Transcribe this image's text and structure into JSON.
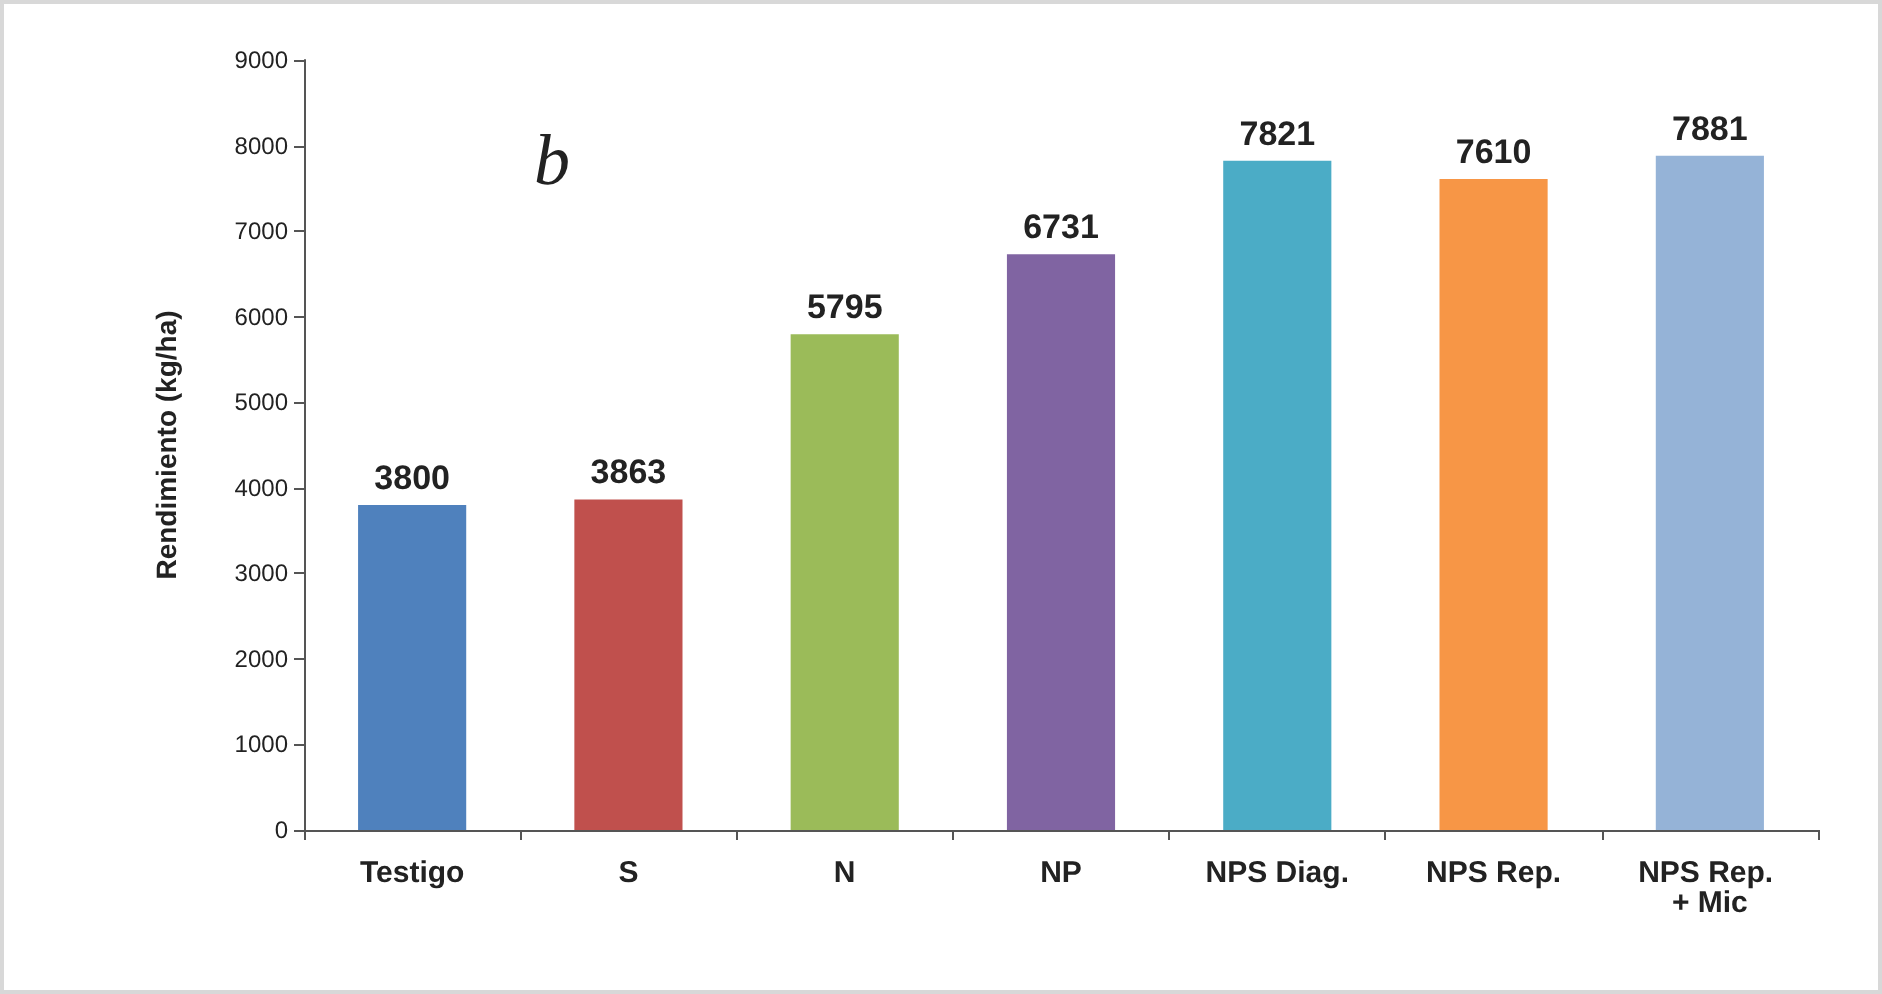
{
  "chart_data": {
    "type": "bar",
    "ylabel": "Rendimiento (kg/ha)",
    "annotations": [
      "b"
    ],
    "categories": [
      "Testigo",
      "S",
      "N",
      "NP",
      "NPS Diag.",
      "NPS Rep.",
      "NPS Rep. + Mic"
    ],
    "values": [
      3800,
      3863,
      5795,
      6731,
      7821,
      7610,
      7881
    ],
    "colors": [
      "#4f81bd",
      "#c0504d",
      "#9bbb59",
      "#8064a2",
      "#4bacc6",
      "#f79646",
      "#95b3d7"
    ],
    "ylim": [
      0,
      9000
    ],
    "yticks": [
      0,
      1000,
      2000,
      3000,
      4000,
      5000,
      6000,
      7000,
      8000,
      9000
    ],
    "grid": false,
    "data_labels": true
  }
}
